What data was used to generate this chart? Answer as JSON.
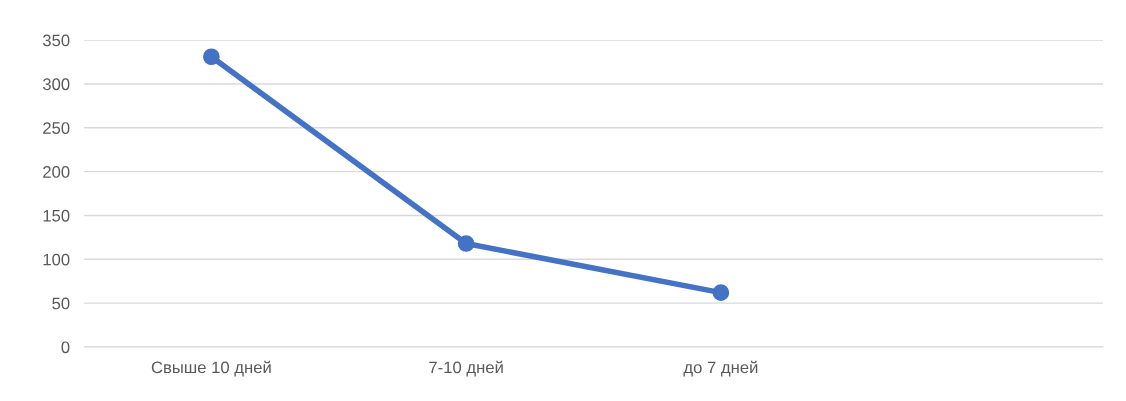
{
  "chart_data": {
    "type": "line",
    "categories": [
      "Свыше 10 дней",
      "7-10 дней",
      "до 7 дней",
      null
    ],
    "series": [
      {
        "color": "#4472c4",
        "values": [
          331,
          118,
          62,
          null
        ]
      }
    ],
    "ylim": [
      0,
      350
    ],
    "yticks": [
      0,
      50,
      100,
      150,
      200,
      250,
      300,
      350
    ],
    "grid": "y",
    "marker": "circle",
    "line_style": "solid",
    "legend": false
  }
}
